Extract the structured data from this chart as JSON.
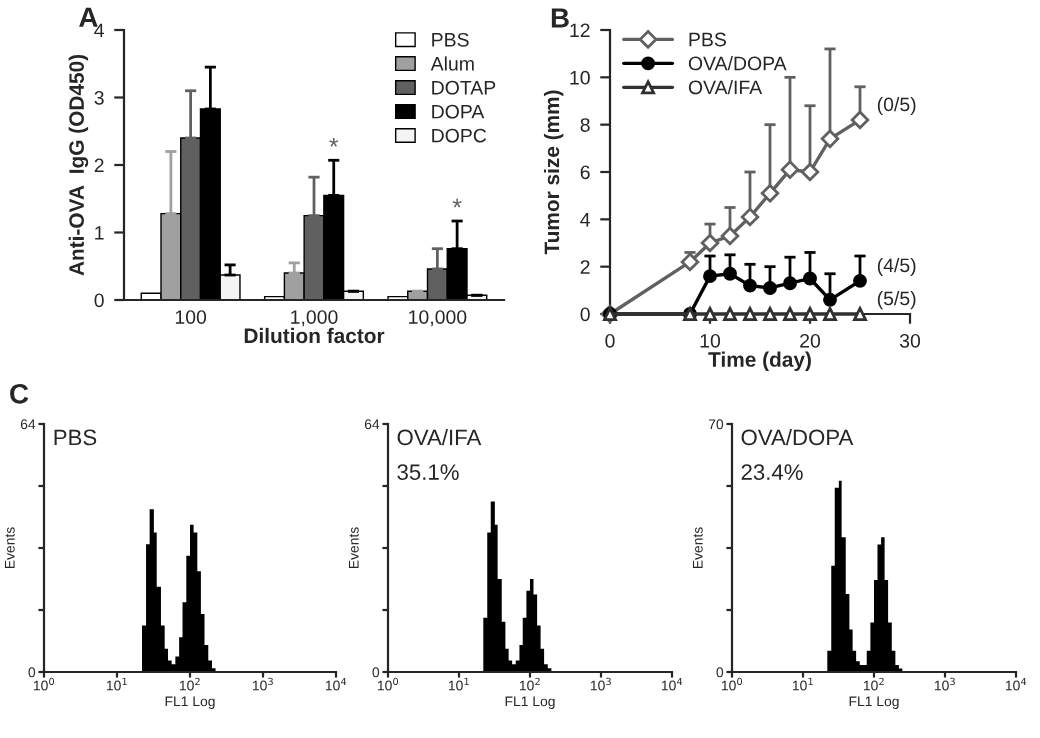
{
  "chart_data": [
    {
      "type": "bar",
      "title": "A",
      "ylabel": "Anti-OVA  IgG (OD450)",
      "xlabel": "Dilution factor",
      "categories": [
        "100",
        "1,000",
        "10,000"
      ],
      "ylim": [
        0,
        4
      ],
      "yticks": [
        0,
        1,
        2,
        3,
        4
      ],
      "legend": "top right",
      "grid": false,
      "series": [
        {
          "name": "PBS",
          "color": "#ffffff",
          "values": [
            0.1,
            0.05,
            0.05
          ]
        },
        {
          "name": "Alum",
          "color": "#a0a0a0",
          "values": [
            1.28,
            0.4,
            0.13
          ],
          "errors": [
            [
              1.28,
              2.2
            ],
            [
              0.4,
              0.55
            ],
            null
          ]
        },
        {
          "name": "DOTAP",
          "color": "#606060",
          "values": [
            2.4,
            1.25,
            0.46
          ],
          "errors": [
            [
              2.4,
              3.1
            ],
            [
              1.25,
              1.82
            ],
            [
              0.46,
              0.76
            ]
          ]
        },
        {
          "name": "DOPA",
          "color": "#000000",
          "values": [
            2.83,
            1.55,
            0.76
          ],
          "errors": [
            [
              2.83,
              3.45
            ],
            [
              1.55,
              2.07
            ],
            [
              0.76,
              1.17
            ]
          ]
        },
        {
          "name": "DOPC",
          "color": "#f4f4f4",
          "values": [
            0.37,
            0.13,
            0.07
          ],
          "errors": [
            [
              0.37,
              0.52
            ],
            null,
            null
          ]
        }
      ],
      "annotations": [
        "*",
        "*"
      ]
    },
    {
      "type": "line",
      "title": "B",
      "ylabel": "Tumor size (mm)",
      "xlabel": "Time (day)",
      "xlim": [
        0,
        30
      ],
      "xticks": [
        0,
        10,
        20,
        30
      ],
      "ylim": [
        0,
        12
      ],
      "yticks": [
        0,
        2,
        4,
        6,
        8,
        10,
        12
      ],
      "legend": "top left",
      "grid": false,
      "series": [
        {
          "name": "PBS",
          "color": "#606060",
          "marker": "diamond",
          "x": [
            0,
            8,
            10,
            12,
            14,
            16,
            18,
            20,
            22,
            25
          ],
          "values": [
            0,
            2.2,
            3.0,
            3.3,
            4.1,
            5.1,
            6.1,
            6.0,
            7.4,
            8.2
          ],
          "errors": [
            null,
            [
              2.2,
              2.6
            ],
            [
              3.0,
              3.8
            ],
            [
              3.3,
              4.5
            ],
            [
              4.1,
              6.0
            ],
            [
              5.1,
              8.0
            ],
            [
              6.1,
              10.0
            ],
            [
              6.0,
              8.8
            ],
            [
              7.4,
              11.2
            ],
            [
              8.2,
              9.6
            ]
          ]
        },
        {
          "name": "OVA/DOPA",
          "color": "#000000",
          "marker": "circle",
          "x": [
            0,
            8,
            10,
            12,
            14,
            16,
            18,
            20,
            22,
            25
          ],
          "values": [
            0,
            0,
            1.6,
            1.7,
            1.2,
            1.1,
            1.3,
            1.5,
            0.6,
            1.4
          ],
          "errors": [
            null,
            null,
            [
              1.6,
              2.45
            ],
            [
              1.7,
              2.5
            ],
            [
              1.2,
              2.1
            ],
            [
              1.1,
              2.0
            ],
            [
              1.3,
              2.4
            ],
            [
              1.5,
              2.6
            ],
            [
              0.6,
              1.7
            ],
            [
              1.4,
              2.45
            ]
          ]
        },
        {
          "name": "OVA/IFA",
          "color": "#303030",
          "marker": "triangle",
          "x": [
            0,
            8,
            10,
            12,
            14,
            16,
            18,
            20,
            22,
            25
          ],
          "values": [
            0,
            0,
            0,
            0,
            0,
            0,
            0,
            0,
            0,
            0
          ]
        }
      ],
      "annotations": [
        "(0/5)",
        "(4/5)",
        "(5/5)"
      ]
    },
    {
      "type": "histogram",
      "title": "PBS",
      "ylabel": "Events",
      "xlabel": "FL1 Log",
      "log": "x",
      "color": "#000000",
      "bins": [
        20,
        22,
        25,
        28,
        32,
        35,
        40,
        45,
        50,
        56,
        63,
        71,
        79,
        89,
        100,
        112,
        126,
        141,
        158,
        178,
        200,
        224,
        251,
        282
      ],
      "values": [
        0,
        12,
        33,
        42,
        36,
        22,
        12,
        6,
        3,
        2,
        4,
        9,
        18,
        30,
        38,
        36,
        26,
        15,
        7,
        3,
        1,
        0,
        0
      ],
      "xlim": [
        1,
        10000
      ],
      "xticks": [
        {
          "value": 1,
          "label": "10$^{0}$"
        },
        {
          "value": 10,
          "label": "10$^{1}$"
        },
        {
          "value": 100,
          "label": "10$^{2}$"
        },
        {
          "value": 1000,
          "label": "10$^{3}$"
        },
        {
          "value": 10000,
          "label": "10$^{4}$"
        }
      ],
      "ylim": [
        0,
        64
      ],
      "yticks": [
        0,
        {
          "value": 16,
          "label": null
        },
        {
          "value": 32,
          "label": null
        },
        {
          "value": 48,
          "label": null
        },
        64
      ],
      "annotations": [
        "C"
      ]
    },
    {
      "type": "histogram",
      "title": "OVA/IFA",
      "ylabel": "Events",
      "xlabel": "FL1 Log",
      "log": "x",
      "color": "#000000",
      "bins": [
        20,
        22,
        25,
        28,
        32,
        35,
        40,
        45,
        50,
        56,
        63,
        71,
        79,
        89,
        100,
        112,
        126,
        141,
        158,
        178,
        200,
        224,
        251,
        282
      ],
      "values": [
        0,
        14,
        36,
        44,
        38,
        24,
        13,
        6,
        3,
        2,
        3,
        7,
        14,
        21,
        24,
        20,
        12,
        6,
        2,
        1,
        0,
        0,
        0
      ],
      "xlim": [
        1,
        10000
      ],
      "xticks": [
        {
          "value": 1,
          "label": "10$^{0}$"
        },
        {
          "value": 10,
          "label": "10$^{1}$"
        },
        {
          "value": 100,
          "label": "10$^{2}$"
        },
        {
          "value": 1000,
          "label": "10$^{3}$"
        },
        {
          "value": 10000,
          "label": "10$^{4}$"
        }
      ],
      "ylim": [
        0,
        64
      ],
      "yticks": [
        0,
        {
          "value": 16,
          "label": null
        },
        {
          "value": 32,
          "label": null
        },
        {
          "value": 48,
          "label": null
        },
        64
      ],
      "annotations": [
        "35.1%"
      ]
    },
    {
      "type": "histogram",
      "title": "OVA/DOPA",
      "ylabel": "Events",
      "xlabel": "FL1 Log",
      "log": "x",
      "color": "#000000",
      "bins": [
        20,
        22,
        25,
        28,
        32,
        35,
        40,
        45,
        50,
        56,
        63,
        71,
        79,
        89,
        100,
        112,
        126,
        141,
        158,
        178,
        200,
        224,
        251,
        282
      ],
      "values": [
        0,
        6,
        30,
        52,
        54,
        38,
        22,
        12,
        6,
        3,
        2,
        2,
        6,
        14,
        26,
        36,
        38,
        26,
        14,
        6,
        2,
        1,
        0
      ],
      "xlim": [
        1,
        10000
      ],
      "xticks": [
        {
          "value": 1,
          "label": "10$^{0}$"
        },
        {
          "value": 10,
          "label": "10$^{1}$"
        },
        {
          "value": 100,
          "label": "10$^{2}$"
        },
        {
          "value": 1000,
          "label": "10$^{3}$"
        },
        {
          "value": 10000,
          "label": "10$^{4}$"
        }
      ],
      "ylim": [
        0,
        70
      ],
      "yticks": [
        0,
        {
          "value": 17.5,
          "label": null
        },
        {
          "value": 35,
          "label": null
        },
        {
          "value": 52.5,
          "label": null
        },
        70
      ],
      "annotations": [
        "23.4%"
      ]
    }
  ]
}
